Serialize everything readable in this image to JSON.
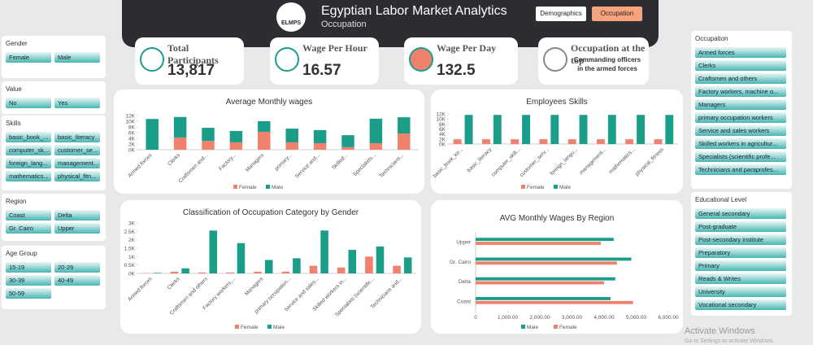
{
  "header": {
    "logo": "ELMPS",
    "title": "Egyptian Labor Market Analytics",
    "subtitle": "Occupation",
    "tabs": [
      "Demographics",
      "Occupation"
    ]
  },
  "cards": [
    {
      "title": "Total Participants",
      "value": "13,817"
    },
    {
      "title": "Wage Per Hour",
      "value": "16.57"
    },
    {
      "title": "Wage Per Day",
      "value": "132.5"
    },
    {
      "title": "Occupation at the top",
      "value": "Commanding officers in the armed forces"
    }
  ],
  "left_slicers": [
    {
      "title": "Gender",
      "items": [
        "Female",
        "Male"
      ]
    },
    {
      "title": "Value",
      "items": [
        "No",
        "Yes"
      ]
    },
    {
      "title": "Skills",
      "items": [
        "basic_book_...",
        "basic_literacy",
        "computer_sk...",
        "customer_se...",
        "foreign_lang...",
        "management...",
        "mathematics...",
        "physical_fitn..."
      ]
    },
    {
      "title": "Region",
      "items": [
        "Coast",
        "Delta",
        "Gr. Cairo",
        "Upper"
      ]
    },
    {
      "title": "Age Group",
      "items": [
        "15-19",
        "20-29",
        "30-39",
        "40-49",
        "50-59"
      ]
    }
  ],
  "right_slicers": [
    {
      "title": "Occupation",
      "items": [
        "Armed forces",
        "Clerks",
        "Craftsmen and others",
        "Factory workers, machine o...",
        "Managers",
        "primary occupation workers",
        "Service and sales workers",
        "Skilled workers in agricultur...",
        "Specialists (scientific profe...",
        "Technicians and paraprofes..."
      ]
    },
    {
      "title": "Educational Level",
      "items": [
        "General secondary",
        "Post-graduate",
        "Post-secondary institute",
        "Preparatory",
        "Primary",
        "Reads & Writes",
        "University",
        "Vocational secondary"
      ]
    }
  ],
  "chart_data": [
    {
      "type": "bar",
      "stacked": true,
      "title": "Average Monthly wages",
      "categories": [
        "Armed forces",
        "Clerks",
        "Craftsmen and...",
        "Factory...",
        "Managers",
        "primary...",
        "Service and...",
        "Skilled...",
        "Specialists...",
        "Technicians..."
      ],
      "series": [
        {
          "name": "Female",
          "color": "#f0816c",
          "values": [
            0,
            4300,
            3100,
            2600,
            6300,
            2600,
            2300,
            900,
            2300,
            5700
          ]
        },
        {
          "name": "Male",
          "color": "#1a9e8a",
          "values": [
            10800,
            7200,
            4600,
            4000,
            3700,
            4800,
            4600,
            4200,
            8600,
            5700
          ]
        }
      ],
      "ylim": [
        0,
        12000
      ],
      "yticks": [
        {
          "value": 0,
          "label": "0K"
        },
        {
          "value": 2000,
          "label": "2K"
        },
        {
          "value": 4000,
          "label": "4K"
        },
        {
          "value": 6000,
          "label": "6K"
        },
        {
          "value": 8000,
          "label": "8K"
        },
        {
          "value": 10000,
          "label": "10K"
        },
        {
          "value": 12000,
          "label": "12K"
        }
      ]
    },
    {
      "type": "bar",
      "stacked": false,
      "title": "Employees Skills",
      "categories": [
        "basic_book_ke...",
        "basic_literacy",
        "computer_skill...",
        "customer_serv...",
        "foreign_langu...",
        "management...",
        "mathematics...",
        "physical_fitness"
      ],
      "series": [
        {
          "name": "Female",
          "color": "#f0816c",
          "values": [
            1900,
            1900,
            1900,
            1900,
            1900,
            1900,
            1900,
            1900
          ]
        },
        {
          "name": "Male",
          "color": "#1a9e8a",
          "values": [
            11600,
            11600,
            11600,
            11600,
            11600,
            11600,
            11600,
            11600
          ]
        }
      ],
      "ylim": [
        0,
        12000
      ],
      "yticks": [
        {
          "value": 0,
          "label": "0K"
        },
        {
          "value": 2000,
          "label": "2K"
        },
        {
          "value": 4000,
          "label": "4K"
        },
        {
          "value": 6000,
          "label": "6K"
        },
        {
          "value": 8000,
          "label": "8K"
        },
        {
          "value": 10000,
          "label": "10K"
        },
        {
          "value": 12000,
          "label": "12K"
        }
      ]
    },
    {
      "type": "bar",
      "stacked": false,
      "title": "Classification of Occupation Category by Gender",
      "categories": [
        "Armed forces",
        "Clerks",
        "Craftsmen and others",
        "Factory workers,...",
        "Managers",
        "primary occupation...",
        "Service and sales...",
        "Skilled workers in...",
        "Specialists (scientific...",
        "Technicians and..."
      ],
      "series": [
        {
          "name": "Female",
          "color": "#f0816c",
          "values": [
            10,
            100,
            50,
            50,
            100,
            100,
            450,
            350,
            1000,
            450
          ]
        },
        {
          "name": "Male",
          "color": "#1a9e8a",
          "values": [
            30,
            300,
            2550,
            1800,
            800,
            900,
            2550,
            1400,
            1600,
            950
          ]
        }
      ],
      "ylim": [
        0,
        3000
      ],
      "yticks": [
        {
          "value": 0,
          "label": "0K"
        },
        {
          "value": 500,
          "label": "0.5K"
        },
        {
          "value": 1000,
          "label": "1K"
        },
        {
          "value": 1500,
          "label": "1.5K"
        },
        {
          "value": 2000,
          "label": "2K"
        },
        {
          "value": 2500,
          "label": "2.5K"
        },
        {
          "value": 3000,
          "label": "3K"
        }
      ]
    },
    {
      "type": "hbar",
      "title": "AVG Monthly Wages By Region",
      "categories": [
        "Upper",
        "Gr. Cairo",
        "Delta",
        "Coast"
      ],
      "series": [
        {
          "name": "Male",
          "color": "#1a9e8a",
          "values": [
            4300,
            4850,
            4350,
            4200
          ]
        },
        {
          "name": "Female",
          "color": "#f0816c",
          "values": [
            3900,
            4400,
            4000,
            4900
          ]
        }
      ],
      "xlim": [
        0,
        6000
      ],
      "xticks": [
        0,
        {
          "value": 1000,
          "label": "1,000.00"
        },
        {
          "value": 2000,
          "label": "2,000.00"
        },
        {
          "value": 3000,
          "label": "3,000.00"
        },
        {
          "value": 4000,
          "label": "4,000.00"
        },
        {
          "value": 5000,
          "label": "5,000.00"
        },
        {
          "value": 6000,
          "label": "6,000.00"
        }
      ]
    }
  ],
  "watermark": {
    "title": "Activate Windows",
    "text": "Go to Settings to activate Windows."
  }
}
